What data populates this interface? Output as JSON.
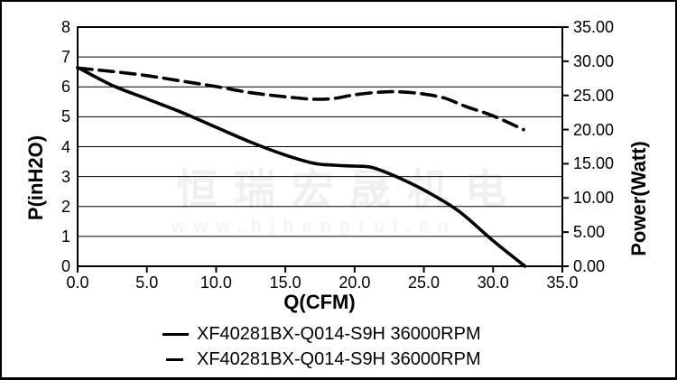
{
  "watermark": {
    "company": "恒瑞宏晟机电",
    "url": "www.bjhengrui.cn"
  },
  "legend": {
    "items": [
      {
        "label": "XF40281BX-Q014-S9H 36000RPM",
        "style": "solid"
      },
      {
        "label": "XF40281BX-Q014-S9H 36000RPM",
        "style": "dashed"
      }
    ]
  },
  "colors": {
    "curve": "#000000",
    "grid": "#000000",
    "watermark": "#f0f0f0"
  },
  "chart_data": {
    "type": "line",
    "title": "",
    "grid": "horizontal",
    "legend_position": "bottom",
    "x_axis": {
      "title": "Q(CFM)",
      "min": 0,
      "max": 35,
      "tick_values": [
        0,
        5,
        10,
        15,
        20,
        25,
        30,
        35
      ],
      "tick_labels": [
        "0.0",
        "5.0",
        "10.0",
        "15.0",
        "20.0",
        "25.0",
        "30.0",
        "35.0"
      ]
    },
    "y_left": {
      "title": "P(inH2O)",
      "min": 0,
      "max": 8,
      "tick_values": [
        0,
        1,
        2,
        3,
        4,
        5,
        6,
        7,
        8
      ],
      "tick_labels": [
        "0",
        "1",
        "2",
        "3",
        "4",
        "5",
        "6",
        "7",
        "8"
      ]
    },
    "y_right": {
      "title": "Power(Watt)",
      "min": 0,
      "max": 35,
      "tick_values": [
        0,
        5,
        10,
        15,
        20,
        25,
        30,
        35
      ],
      "tick_labels": [
        "0.00",
        "5.00",
        "10.00",
        "15.00",
        "20.00",
        "25.00",
        "30.00",
        "35.00"
      ]
    },
    "series": [
      {
        "name": "XF40281BX-Q014-S9H 36000RPM",
        "quantity": "static pressure",
        "axis": "left",
        "style": "solid",
        "color": "#000000",
        "points": [
          [
            0,
            6.65
          ],
          [
            2.5,
            6.05
          ],
          [
            5,
            5.6
          ],
          [
            7.5,
            5.15
          ],
          [
            10,
            4.65
          ],
          [
            12.5,
            4.15
          ],
          [
            15,
            3.72
          ],
          [
            17,
            3.45
          ],
          [
            18.5,
            3.38
          ],
          [
            20,
            3.35
          ],
          [
            21.3,
            3.3
          ],
          [
            23,
            3.0
          ],
          [
            25,
            2.55
          ],
          [
            27.5,
            1.85
          ],
          [
            30,
            0.85
          ],
          [
            32.3,
            0
          ]
        ]
      },
      {
        "name": "XF40281BX-Q014-S9H 36000RPM",
        "quantity": "power",
        "axis": "right",
        "style": "dashed",
        "color": "#000000",
        "points": [
          [
            0,
            29.0
          ],
          [
            2.5,
            28.5
          ],
          [
            5,
            27.9
          ],
          [
            7.5,
            27.1
          ],
          [
            10,
            26.3
          ],
          [
            12.5,
            25.4
          ],
          [
            15,
            24.8
          ],
          [
            17,
            24.45
          ],
          [
            18.5,
            24.55
          ],
          [
            20,
            25.1
          ],
          [
            22,
            25.5
          ],
          [
            23.5,
            25.5
          ],
          [
            25,
            25.2
          ],
          [
            26.5,
            24.6
          ],
          [
            28,
            23.4
          ],
          [
            30,
            22.0
          ],
          [
            32.2,
            20.0
          ]
        ]
      }
    ]
  }
}
